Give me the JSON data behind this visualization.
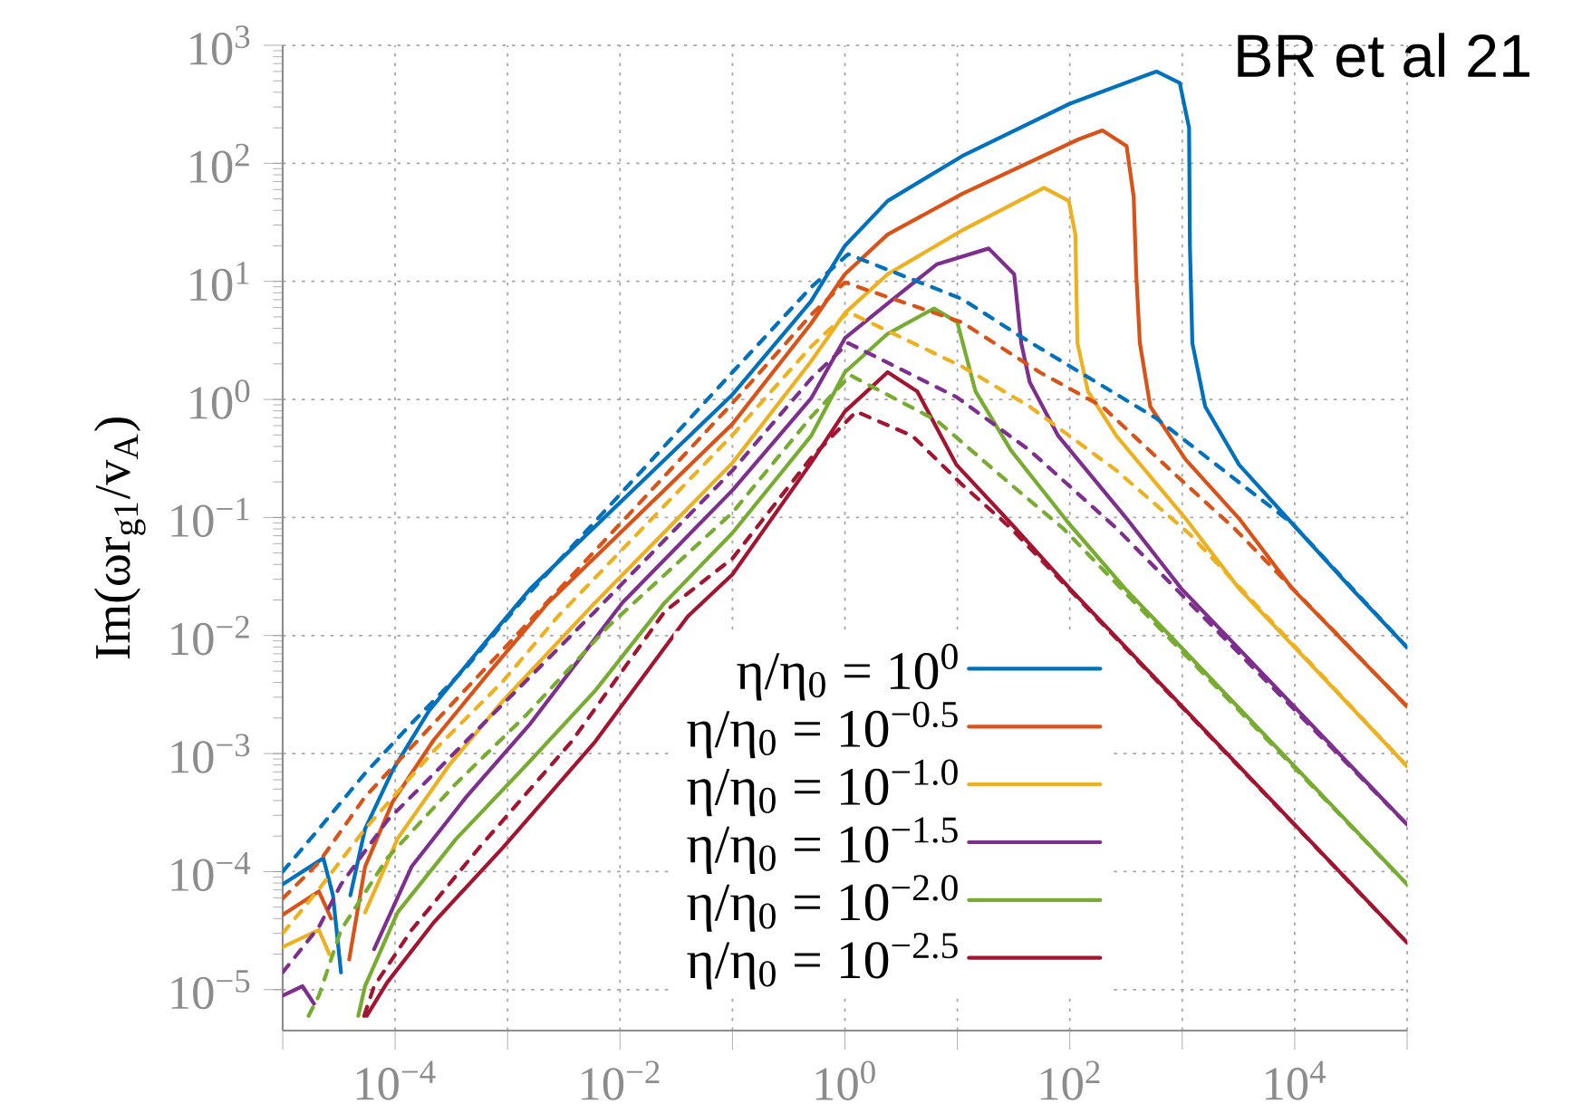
{
  "chart_data": {
    "type": "line",
    "ylabel": "Im(ωr$_{g1}$/v$_{A}$)",
    "annotations": [
      "BR et al 21"
    ],
    "log": "xy",
    "grid": true,
    "legend": "bottom",
    "xlim": [
      1e-05,
      100000.0
    ],
    "ylim": [
      4.5e-06,
      1000
    ],
    "xticks": [
      {
        "value": 1e-05,
        "label": null
      },
      {
        "value": 0.0001,
        "label": "10$^{−4}$"
      },
      {
        "value": 0.001,
        "label": null
      },
      {
        "value": 0.01,
        "label": "10$^{−2}$"
      },
      {
        "value": 0.1,
        "label": null
      },
      {
        "value": 1,
        "label": "10$^{0}$"
      },
      {
        "value": 10,
        "label": null
      },
      {
        "value": 100,
        "label": "10$^{2}$"
      },
      {
        "value": 1000,
        "label": null
      },
      {
        "value": 10000.0,
        "label": "10$^{4}$"
      },
      {
        "value": 100000.0,
        "label": null
      }
    ],
    "yticks": [
      {
        "value": 1e-05,
        "label": "10$^{−5}$"
      },
      {
        "value": 0.0001,
        "label": "10$^{−4}$"
      },
      {
        "value": 0.001,
        "label": "10$^{−3}$"
      },
      {
        "value": 0.01,
        "label": "10$^{−2}$"
      },
      {
        "value": 0.1,
        "label": "10$^{−1}$"
      },
      {
        "value": 1,
        "label": "10$^{0}$"
      },
      {
        "value": 10,
        "label": "10$^{1}$"
      },
      {
        "value": 100,
        "label": "10$^{2}$"
      },
      {
        "value": 1000,
        "label": "10$^{3}$"
      }
    ],
    "series": [
      {
        "name": "η/η$_{0}$ = 10$^{0}$",
        "color": "#0072bd",
        "line_style": "solid",
        "x": [
          1e-05,
          2.3e-05,
          2.8e-05,
          3.3e-05,
          3.5e-05,
          4e-05,
          5.4e-05,
          9.5e-05,
          0.0002,
          0.00056,
          0.0016,
          0.1,
          0.5,
          1,
          2.4,
          11,
          100,
          590,
          950,
          1150,
          1170,
          1230,
          1600,
          3200,
          9500,
          32000,
          100000.0
        ],
        "values": [
          7.8e-05,
          0.00013,
          6.3e-05,
          1.4e-05,
          null,
          6.3e-05,
          0.00023,
          0.00072,
          0.0023,
          0.0076,
          0.025,
          1.1,
          6.8,
          20,
          48,
          115,
          320,
          600,
          480,
          200,
          20,
          3.0,
          0.87,
          0.28,
          0.089,
          0.025,
          0.0079
        ]
      },
      {
        "name": "η/η$_{0}$ = 10$^{−0.5}$",
        "color": "#d95319",
        "line_style": "solid",
        "x": [
          1e-05,
          2.1e-05,
          2.7e-05,
          3e-05,
          3.9e-05,
          5.4e-05,
          9.5e-05,
          0.00022,
          0.00069,
          0.0023,
          0.1,
          0.5,
          1,
          2.4,
          11,
          120,
          195,
          320,
          370,
          390,
          420,
          520,
          1070,
          3200,
          9500,
          100000.0
        ],
        "values": [
          4.3e-05,
          6.8e-05,
          4e-05,
          null,
          1.8e-05,
          0.00011,
          0.00039,
          0.0013,
          0.0049,
          0.019,
          0.62,
          4.4,
          11.5,
          25,
          55,
          160,
          190,
          140,
          52,
          11.5,
          3.0,
          0.87,
          0.31,
          0.098,
          0.025,
          0.0025
        ]
      },
      {
        "name": "η/η$_{0}$ = 10$^{−1.0}$",
        "color": "#edb120",
        "line_style": "solid",
        "x": [
          1e-05,
          2.1e-05,
          2.6e-05,
          2.8e-05,
          3.9e-05,
          5.4e-05,
          0.000105,
          0.0003,
          0.00091,
          0.006,
          0.1,
          0.5,
          1,
          2.4,
          11,
          59,
          98,
          112,
          117,
          145,
          260,
          1070,
          3200,
          100000.0
        ],
        "values": [
          2.3e-05,
          3.2e-05,
          2e-05,
          null,
          null,
          4.5e-05,
          0.00019,
          0.00079,
          0.0028,
          0.019,
          0.29,
          2.1,
          5.4,
          11.5,
          27,
          62,
          48,
          25,
          3.0,
          1.17,
          0.49,
          0.098,
          0.025,
          0.00078
        ]
      },
      {
        "name": "η/η$_{0}$ = 10$^{−1.5}$",
        "color": "#7e2f8e",
        "line_style": "solid",
        "x": [
          1e-05,
          1.5e-05,
          1.9e-05,
          2.2e-05,
          4.3e-05,
          6.5e-05,
          0.00014,
          0.00043,
          0.0016,
          0.0105,
          0.1,
          0.5,
          1,
          2.4,
          6.6,
          19,
          32,
          37,
          44,
          79,
          320,
          980,
          100000.0
        ],
        "values": [
          8.9e-06,
          1.07e-05,
          7.6e-06,
          null,
          null,
          2.2e-05,
          0.00011,
          0.00043,
          0.0018,
          0.019,
          0.17,
          1.02,
          3.3,
          6.5,
          14,
          19,
          11.5,
          3.0,
          1.4,
          0.49,
          0.098,
          0.025,
          0.00025
        ]
      },
      {
        "name": "η/η$_{0}$ = 10$^{−2.0}$",
        "color": "#77ac30",
        "line_style": "solid",
        "x": [
          4.7e-05,
          5.4e-05,
          0.000105,
          0.00035,
          0.00145,
          0.006,
          0.025,
          0.1,
          0.5,
          1,
          2.4,
          6.2,
          10,
          14.5,
          30,
          98,
          310,
          100000.0
        ],
        "values": [
          6e-06,
          1.07e-05,
          4.5e-05,
          0.00019,
          0.00079,
          0.0034,
          0.019,
          0.074,
          0.49,
          1.7,
          3.6,
          5.9,
          4.5,
          1.17,
          0.37,
          0.089,
          0.025,
          7.8e-05
        ]
      },
      {
        "name": "η/η$_{0}$ = 10$^{−2.5}$",
        "color": "#a2142f",
        "line_style": "solid",
        "x": [
          5.6e-05,
          8.5e-05,
          0.00022,
          0.00091,
          0.006,
          0.04,
          0.1,
          0.5,
          1,
          2.4,
          4.4,
          9.8,
          30,
          100,
          100000.0
        ],
        "values": [
          6e-06,
          1.15e-05,
          3.7e-05,
          0.00016,
          0.00126,
          0.0145,
          0.033,
          0.29,
          0.79,
          1.7,
          1.17,
          0.28,
          0.089,
          0.025,
          2.5e-05
        ]
      },
      {
        "color": "#0072bd",
        "line_style": "dotted",
        "x": [
          1e-05,
          2.1e-05,
          5.4e-05,
          0.00014,
          0.00043,
          0.0013,
          0.1,
          0.5,
          1.07,
          11,
          35,
          590,
          9500,
          100000.0
        ],
        "values": [
          0.0001,
          0.00023,
          0.00068,
          0.0018,
          0.0054,
          0.019,
          1.7,
          8.9,
          17,
          7.1,
          3.5,
          0.69,
          0.089,
          0.0079
        ]
      },
      {
        "color": "#d95319",
        "line_style": "dotted",
        "x": [
          1e-05,
          2.1e-05,
          5.4e-05,
          0.00022,
          0.00091,
          0.1,
          0.5,
          1,
          11,
          54,
          195,
          870,
          2900,
          100000.0
        ],
        "values": [
          5.9e-05,
          0.00012,
          0.00043,
          0.0018,
          0.0076,
          0.93,
          5.2,
          9.8,
          4.5,
          1.7,
          0.87,
          0.23,
          0.081,
          0.0025
        ]
      },
      {
        "color": "#edb120",
        "line_style": "dotted",
        "x": [
          1e-05,
          2.1e-05,
          5.4e-05,
          0.00022,
          0.00091,
          0.0028,
          0.1,
          0.5,
          1.07,
          11,
          44,
          260,
          1170,
          100000.0
        ],
        "values": [
          3e-05,
          7.1e-05,
          0.00023,
          0.00105,
          0.0041,
          0.0145,
          0.5,
          2.8,
          5.5,
          1.9,
          0.87,
          0.25,
          0.072,
          0.00078
        ]
      },
      {
        "color": "#7e2f8e",
        "line_style": "dotted",
        "x": [
          1e-05,
          2.1e-05,
          3.3e-05,
          8.5e-05,
          0.00035,
          0.00145,
          0.006,
          0.1,
          0.5,
          1.07,
          9.8,
          44,
          260,
          100000.0
        ],
        "values": [
          1.4e-05,
          3.4e-05,
          7.8e-05,
          0.00027,
          0.00105,
          0.0041,
          0.016,
          0.25,
          1.5,
          3.0,
          1.05,
          0.37,
          0.081,
          0.00025
        ]
      },
      {
        "color": "#77ac30",
        "line_style": "dotted",
        "x": [
          1.7e-05,
          2.1e-05,
          3.3e-05,
          8.5e-05,
          0.00035,
          0.00145,
          0.0079,
          0.1,
          0.5,
          1.12,
          6.6,
          30,
          87,
          100000.0
        ],
        "values": [
          6e-06,
          8.9e-06,
          3.2e-05,
          0.00013,
          0.00056,
          0.0021,
          0.012,
          0.11,
          0.71,
          1.6,
          0.66,
          0.19,
          0.081,
          7.8e-05
        ]
      },
      {
        "color": "#a2142f",
        "line_style": "dotted",
        "x": [
          5.3e-05,
          6.5e-05,
          0.00014,
          0.00056,
          0.0037,
          0.025,
          0.1,
          0.5,
          1.26,
          4,
          11,
          30,
          100000.0
        ],
        "values": [
          6e-06,
          1.07e-05,
          3.2e-05,
          0.00016,
          0.00126,
          0.016,
          0.045,
          0.32,
          0.79,
          0.49,
          0.19,
          0.081,
          2.5e-05
        ]
      }
    ]
  }
}
